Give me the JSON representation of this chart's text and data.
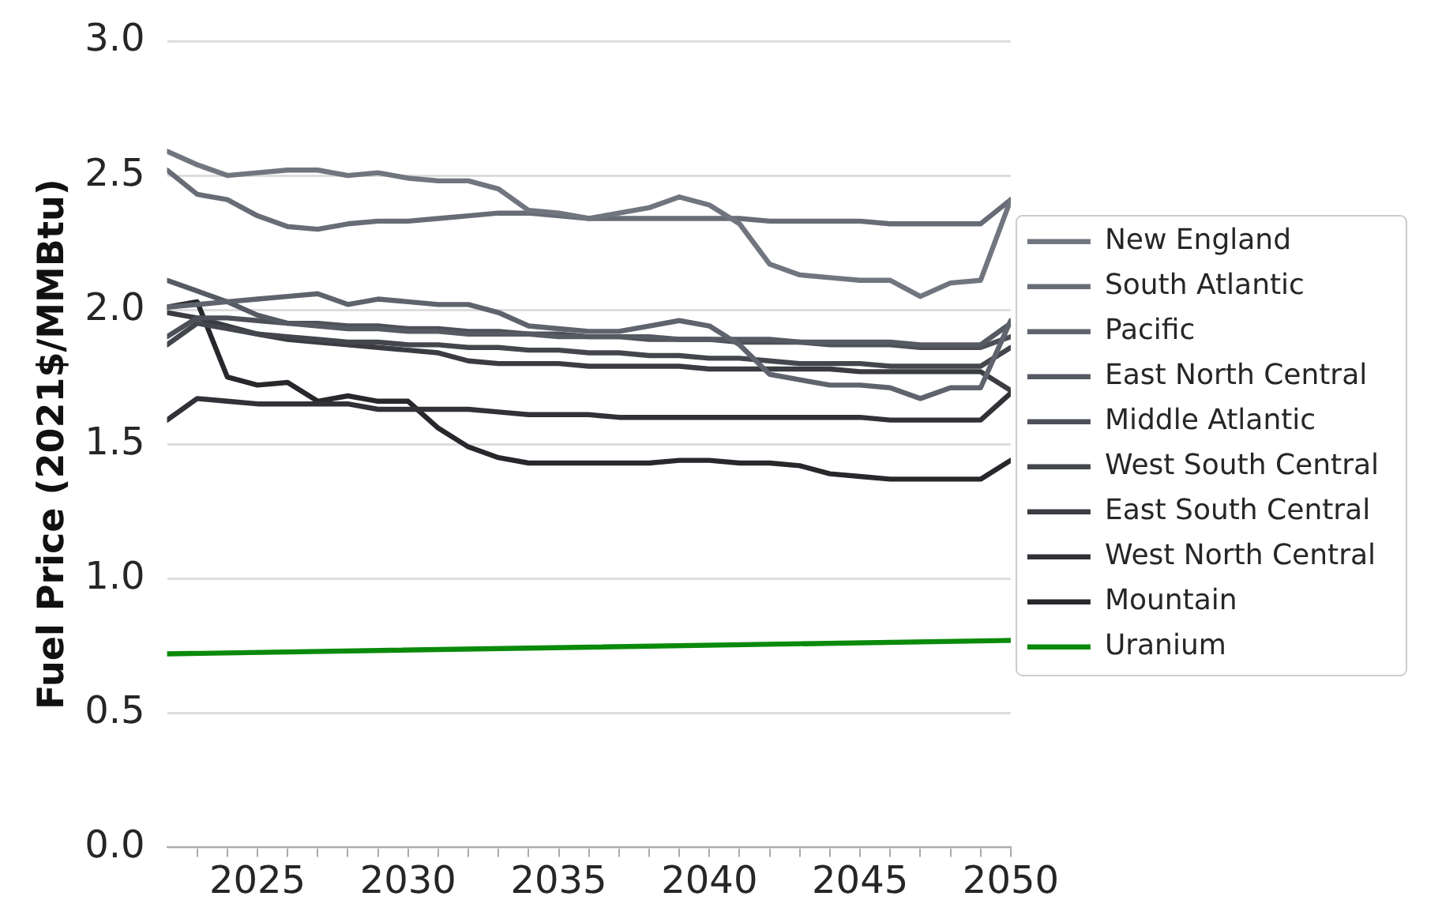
{
  "chart_data": {
    "type": "line",
    "ylabel": "Fuel Price (2021$/MMBtu)",
    "x": [
      2022,
      2023,
      2024,
      2025,
      2026,
      2027,
      2028,
      2029,
      2030,
      2031,
      2032,
      2033,
      2034,
      2035,
      2036,
      2037,
      2038,
      2039,
      2040,
      2041,
      2042,
      2043,
      2044,
      2045,
      2046,
      2047,
      2048,
      2049,
      2050
    ],
    "xlim": [
      2022,
      2050
    ],
    "xticks": [
      {
        "value": 2023,
        "label": null
      },
      {
        "value": 2024,
        "label": null
      },
      2025,
      {
        "value": 2026,
        "label": null
      },
      {
        "value": 2027,
        "label": null
      },
      {
        "value": 2028,
        "label": null
      },
      {
        "value": 2029,
        "label": null
      },
      2030,
      {
        "value": 2031,
        "label": null
      },
      {
        "value": 2032,
        "label": null
      },
      {
        "value": 2033,
        "label": null
      },
      {
        "value": 2034,
        "label": null
      },
      2035,
      {
        "value": 2036,
        "label": null
      },
      {
        "value": 2037,
        "label": null
      },
      {
        "value": 2038,
        "label": null
      },
      {
        "value": 2039,
        "label": null
      },
      2040,
      {
        "value": 2041,
        "label": null
      },
      {
        "value": 2042,
        "label": null
      },
      {
        "value": 2043,
        "label": null
      },
      {
        "value": 2044,
        "label": null
      },
      2045,
      {
        "value": 2046,
        "label": null
      },
      {
        "value": 2047,
        "label": null
      },
      {
        "value": 2048,
        "label": null
      },
      {
        "value": 2049,
        "label": null
      },
      2050
    ],
    "ylim": [
      0,
      3
    ],
    "yticks": [
      {
        "value": 0,
        "label": "0.0"
      },
      0.5,
      {
        "value": 1,
        "label": "1.0"
      },
      1.5,
      {
        "value": 2,
        "label": "2.0"
      },
      2.5,
      {
        "value": 3,
        "label": "3.0"
      }
    ],
    "grid": "y",
    "legend": "right",
    "series": [
      {
        "name": "New England",
        "color": "#70757f",
        "values": [
          2.59,
          2.54,
          2.5,
          2.51,
          2.52,
          2.52,
          2.5,
          2.51,
          2.49,
          2.48,
          2.48,
          2.45,
          2.37,
          2.36,
          2.34,
          2.36,
          2.38,
          2.42,
          2.39,
          2.32,
          2.17,
          2.13,
          2.12,
          2.11,
          2.11,
          2.05,
          2.1,
          2.11,
          2.41
        ]
      },
      {
        "name": "South Atlantic",
        "color": "#686c77",
        "values": [
          2.52,
          2.43,
          2.41,
          2.35,
          2.31,
          2.3,
          2.32,
          2.33,
          2.33,
          2.34,
          2.35,
          2.36,
          2.36,
          2.35,
          2.34,
          2.34,
          2.34,
          2.34,
          2.34,
          2.34,
          2.33,
          2.33,
          2.33,
          2.33,
          2.32,
          2.32,
          2.32,
          2.32,
          2.41
        ]
      },
      {
        "name": "Pacific",
        "color": "#5f636d",
        "values": [
          2.01,
          2.02,
          2.03,
          2.04,
          2.05,
          2.06,
          2.02,
          2.04,
          2.03,
          2.02,
          2.02,
          1.99,
          1.94,
          1.93,
          1.92,
          1.92,
          1.94,
          1.96,
          1.94,
          1.87,
          1.76,
          1.74,
          1.72,
          1.72,
          1.71,
          1.67,
          1.71,
          1.71,
          1.96
        ]
      },
      {
        "name": "East North Central",
        "color": "#565a63",
        "values": [
          2.11,
          2.07,
          2.03,
          1.98,
          1.95,
          1.94,
          1.93,
          1.93,
          1.92,
          1.92,
          1.91,
          1.91,
          1.91,
          1.9,
          1.9,
          1.9,
          1.9,
          1.89,
          1.89,
          1.89,
          1.89,
          1.88,
          1.88,
          1.88,
          1.88,
          1.87,
          1.87,
          1.87,
          1.95
        ]
      },
      {
        "name": "Middle Atlantic",
        "color": "#4d5058",
        "values": [
          1.9,
          1.97,
          1.97,
          1.96,
          1.95,
          1.95,
          1.94,
          1.94,
          1.93,
          1.93,
          1.92,
          1.92,
          1.91,
          1.91,
          1.9,
          1.9,
          1.89,
          1.89,
          1.89,
          1.88,
          1.88,
          1.88,
          1.87,
          1.87,
          1.87,
          1.86,
          1.86,
          1.86,
          1.9
        ]
      },
      {
        "name": "West South Central",
        "color": "#44464d",
        "values": [
          1.87,
          1.95,
          1.93,
          1.91,
          1.9,
          1.89,
          1.88,
          1.88,
          1.87,
          1.87,
          1.86,
          1.86,
          1.85,
          1.85,
          1.84,
          1.84,
          1.83,
          1.83,
          1.82,
          1.82,
          1.81,
          1.8,
          1.8,
          1.8,
          1.79,
          1.79,
          1.79,
          1.79,
          1.86
        ]
      },
      {
        "name": "East South Central",
        "color": "#3a3c42",
        "values": [
          1.99,
          1.97,
          1.94,
          1.91,
          1.89,
          1.88,
          1.87,
          1.86,
          1.85,
          1.84,
          1.81,
          1.8,
          1.8,
          1.8,
          1.79,
          1.79,
          1.79,
          1.79,
          1.78,
          1.78,
          1.78,
          1.78,
          1.78,
          1.77,
          1.77,
          1.77,
          1.77,
          1.77,
          1.7
        ]
      },
      {
        "name": "West North Central",
        "color": "#313237",
        "values": [
          1.59,
          1.67,
          1.66,
          1.65,
          1.65,
          1.65,
          1.65,
          1.63,
          1.63,
          1.63,
          1.63,
          1.62,
          1.61,
          1.61,
          1.61,
          1.6,
          1.6,
          1.6,
          1.6,
          1.6,
          1.6,
          1.6,
          1.6,
          1.6,
          1.59,
          1.59,
          1.59,
          1.59,
          1.69
        ]
      },
      {
        "name": "Mountain",
        "color": "#27282b",
        "values": [
          2.01,
          2.03,
          1.75,
          1.72,
          1.73,
          1.66,
          1.68,
          1.66,
          1.66,
          1.56,
          1.49,
          1.45,
          1.43,
          1.43,
          1.43,
          1.43,
          1.43,
          1.44,
          1.44,
          1.43,
          1.43,
          1.42,
          1.39,
          1.38,
          1.37,
          1.37,
          1.37,
          1.37,
          1.44
        ]
      },
      {
        "name": "Uranium",
        "color": "#0a8a0a",
        "x": [
          2022,
          2050
        ],
        "values": [
          0.72,
          0.77
        ]
      }
    ]
  }
}
